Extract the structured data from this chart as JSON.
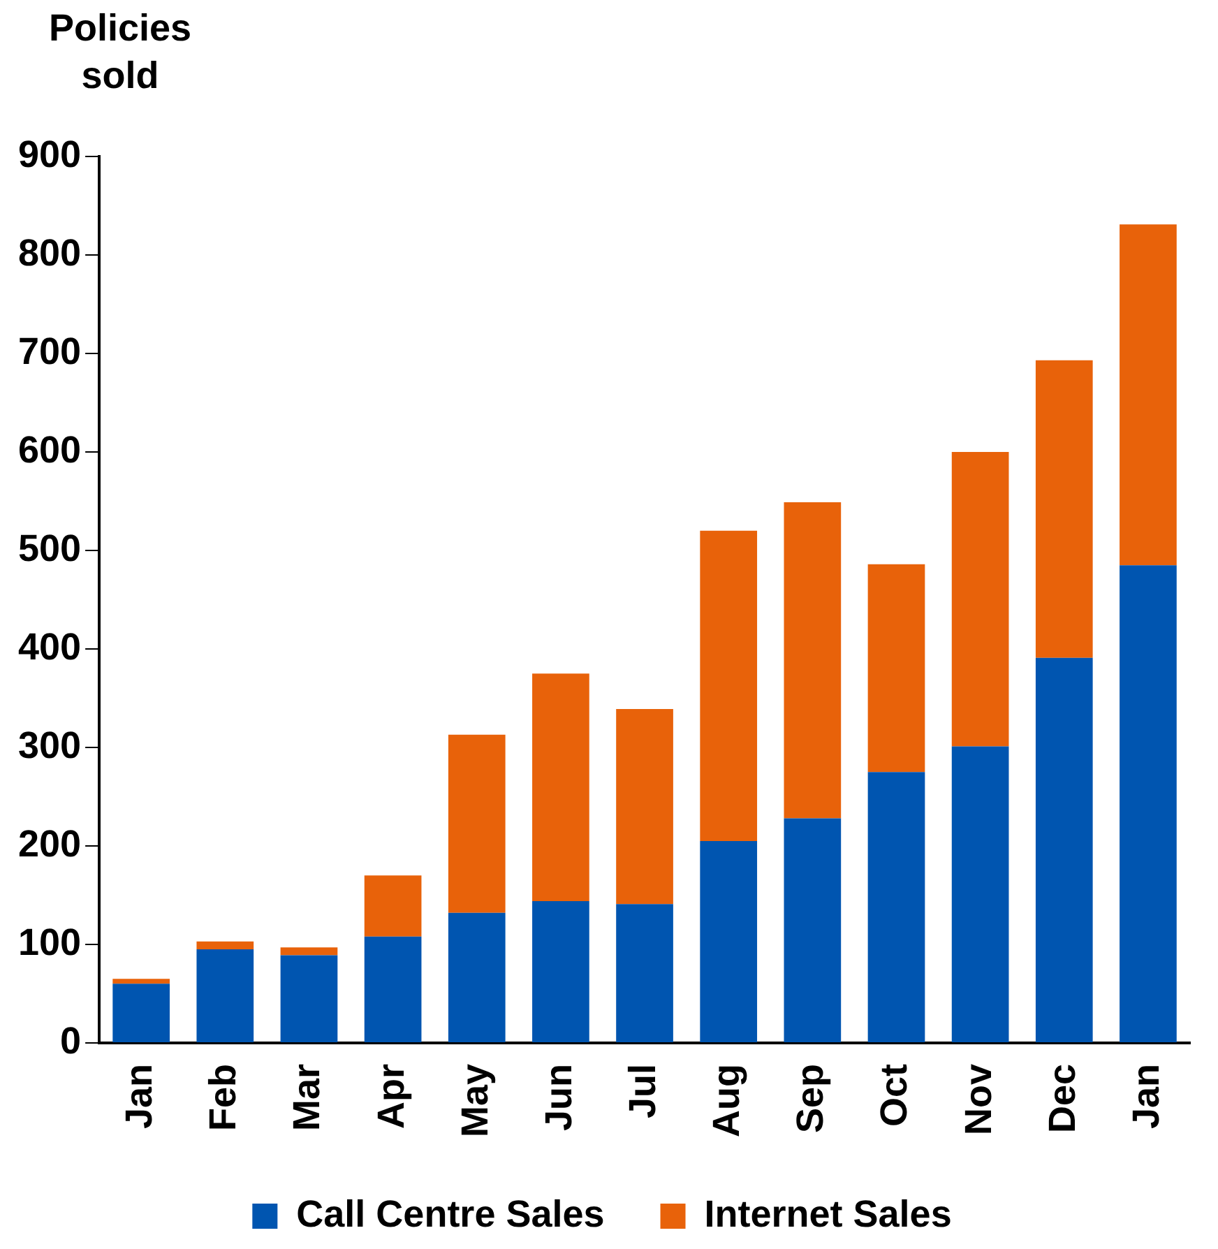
{
  "chart_data": {
    "type": "bar",
    "ylabel": "Policies sold",
    "stacked": true,
    "categories": [
      "Jan",
      "Feb",
      "Mar",
      "Apr",
      "May",
      "Jun",
      "Jul",
      "Aug",
      "Sep",
      "Oct",
      "Nov",
      "Dec",
      "Jan"
    ],
    "series": [
      {
        "name": "Call Centre Sales",
        "color": "#0055b0",
        "values": [
          60,
          95,
          89,
          108,
          132,
          144,
          141,
          205,
          228,
          275,
          301,
          391,
          485
        ]
      },
      {
        "name": "Internet Sales",
        "color": "#e8620a",
        "values": [
          5,
          8,
          8,
          62,
          181,
          231,
          198,
          315,
          321,
          211,
          299,
          302,
          346
        ]
      }
    ],
    "ylim": [
      0,
      900
    ],
    "yticks": [
      0,
      100,
      200,
      300,
      400,
      500,
      600,
      700,
      800,
      900
    ],
    "grid": false,
    "legend": "bottom"
  }
}
